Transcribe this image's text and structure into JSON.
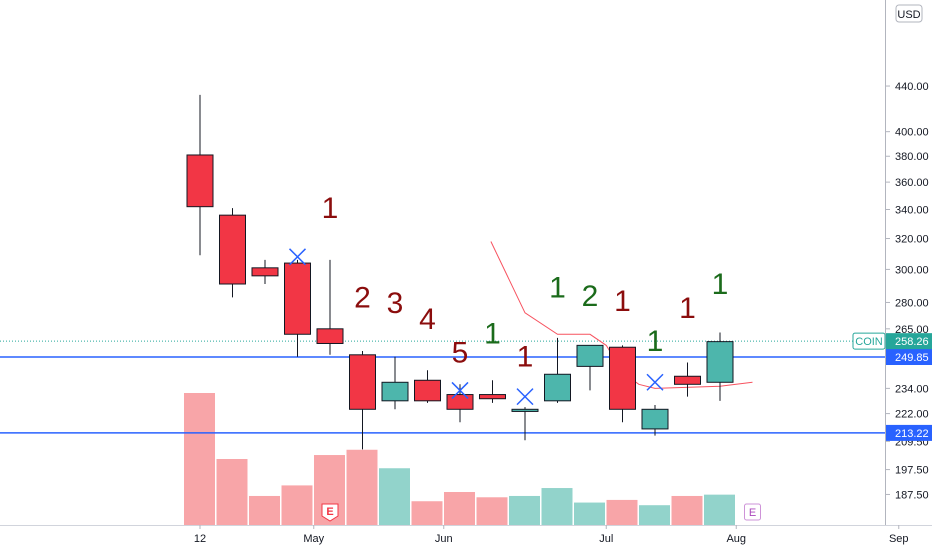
{
  "chart_data": {
    "type": "candlestick",
    "currency": "USD",
    "y_scale": "log",
    "ylim": [
      180,
      495
    ],
    "y_ticks": [
      "187.50",
      "197.50",
      "209.50",
      "222.00",
      "234.00",
      "249.85",
      "265.00",
      "280.00",
      "300.00",
      "320.00",
      "340.00",
      "360.00",
      "380.00",
      "400.00",
      "440.00"
    ],
    "x_ticks": [
      {
        "label": "12",
        "index": 0
      },
      {
        "label": "May",
        "index": 3.5
      },
      {
        "label": "Jun",
        "index": 7.5
      },
      {
        "label": "Jul",
        "index": 12.5
      },
      {
        "label": "Aug",
        "index": 16.5
      },
      {
        "label": "Sep",
        "index": 21.5
      }
    ],
    "candles": [
      {
        "o": 381,
        "h": 432,
        "l": 309,
        "c": 342,
        "v": 100
      },
      {
        "o": 336,
        "h": 341,
        "l": 283,
        "c": 291,
        "v": 50
      },
      {
        "o": 301,
        "h": 306,
        "l": 291,
        "c": 296,
        "v": 22
      },
      {
        "o": 304,
        "h": 306,
        "l": 250,
        "c": 262,
        "v": 30
      },
      {
        "o": 265,
        "h": 306,
        "l": 251,
        "c": 257,
        "v": 53
      },
      {
        "o": 251,
        "h": 253,
        "l": 206,
        "c": 224,
        "v": 57
      },
      {
        "o": 228,
        "h": 250,
        "l": 224,
        "c": 237,
        "v": 43
      },
      {
        "o": 238,
        "h": 243,
        "l": 227,
        "c": 228,
        "v": 18
      },
      {
        "o": 231,
        "h": 236,
        "l": 218,
        "c": 224,
        "v": 25
      },
      {
        "o": 231,
        "h": 238,
        "l": 227,
        "c": 229,
        "v": 21
      },
      {
        "o": 223,
        "h": 225,
        "l": 210,
        "c": 224,
        "v": 22
      },
      {
        "o": 228,
        "h": 260,
        "l": 227,
        "c": 241,
        "v": 28
      },
      {
        "o": 245,
        "h": 255,
        "l": 233,
        "c": 256,
        "v": 17
      },
      {
        "o": 255,
        "h": 256,
        "l": 218,
        "c": 224,
        "v": 19
      },
      {
        "o": 215,
        "h": 226,
        "l": 212,
        "c": 224,
        "v": 15
      },
      {
        "o": 240,
        "h": 247,
        "l": 230,
        "c": 236,
        "v": 22
      },
      {
        "o": 237,
        "h": 263,
        "l": 228,
        "c": 258,
        "v": 23
      }
    ],
    "hlines": [
      {
        "value": 249.85,
        "label": "249.85",
        "color": "#2962ff"
      },
      {
        "value": 213.22,
        "label": "213.22",
        "color": "#2962ff"
      }
    ],
    "last_price": {
      "symbol": "COIN",
      "value": "258.26",
      "price": 258.26,
      "color": "#26a69a"
    },
    "red_line": [
      [
        8.95,
        318
      ],
      [
        10,
        274
      ],
      [
        11,
        262
      ],
      [
        12,
        262
      ],
      [
        12.5,
        256
      ],
      [
        13,
        242
      ],
      [
        13.5,
        236
      ],
      [
        14,
        234
      ],
      [
        16,
        235
      ],
      [
        17,
        237
      ]
    ],
    "annotations": [
      {
        "index": 4,
        "text": "1",
        "color": "#8b0d0d",
        "price": 334
      },
      {
        "index": 5,
        "text": "2",
        "color": "#8b0d0d",
        "price": 277
      },
      {
        "index": 6,
        "text": "3",
        "color": "#8b0d0d",
        "price": 274
      },
      {
        "index": 7,
        "text": "4",
        "color": "#8b0d0d",
        "price": 265
      },
      {
        "index": 8,
        "text": "5",
        "color": "#8b0d0d",
        "price": 247
      },
      {
        "index": 9,
        "text": "1",
        "color": "#1b6b1b",
        "price": 257
      },
      {
        "index": 10,
        "text": "1",
        "color": "#8b0d0d",
        "price": 245
      },
      {
        "index": 11,
        "text": "1",
        "color": "#1b6b1b",
        "price": 283
      },
      {
        "index": 12,
        "text": "2",
        "color": "#1b6b1b",
        "price": 278
      },
      {
        "index": 13,
        "text": "1",
        "color": "#8b0d0d",
        "price": 275
      },
      {
        "index": 14,
        "text": "1",
        "color": "#1b6b1b",
        "price": 253
      },
      {
        "index": 15,
        "text": "1",
        "color": "#8b0d0d",
        "price": 271
      },
      {
        "index": 16,
        "text": "1",
        "color": "#1b6b1b",
        "price": 285
      }
    ],
    "crosses": [
      {
        "index": 3,
        "price": 308
      },
      {
        "index": 8,
        "price": 233
      },
      {
        "index": 10,
        "price": 230
      },
      {
        "index": 14,
        "price": 237
      }
    ],
    "event_badges": [
      {
        "index": 4,
        "text": "E",
        "style": "filled"
      },
      {
        "index": 17,
        "text": "E",
        "style": "outline"
      }
    ],
    "colors": {
      "up": "#26a69a",
      "up_fill": "#4db6ac",
      "down": "#f23645",
      "volume_up": "#92d3cb",
      "volume_down": "#f8a5a8",
      "cross": "#2962ff",
      "grid": "#d1d4dc"
    }
  }
}
